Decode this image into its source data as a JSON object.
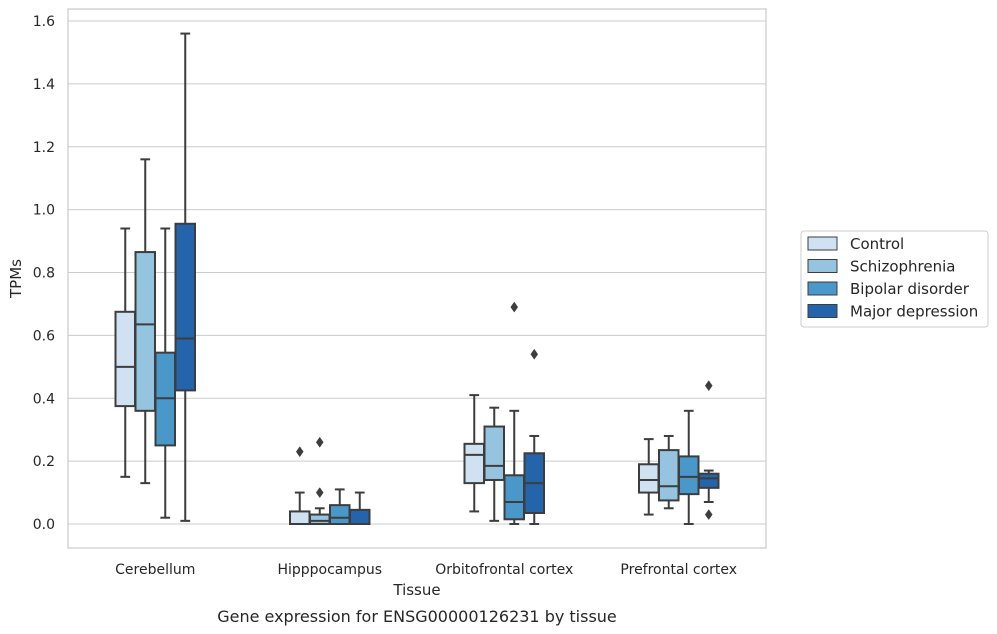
{
  "chart_data": {
    "type": "boxplot",
    "title": "",
    "caption": "Gene expression for ENSG00000126231 by tissue",
    "xlabel": "Tissue",
    "ylabel": "TPMs",
    "ylim": [
      -0.075,
      1.64
    ],
    "yticks": [
      "0.0",
      "0.2",
      "0.4",
      "0.6",
      "0.8",
      "1.0",
      "1.2",
      "1.4",
      "1.6"
    ],
    "grid": "horizontal",
    "legend_position": "right",
    "categories": [
      "Cerebellum",
      "Hipppocampus",
      "Orbitofrontal cortex",
      "Prefrontal cortex"
    ],
    "series": [
      {
        "name": "Control",
        "color": "#d0e1f2",
        "boxes": [
          {
            "whislo": 0.15,
            "q1": 0.375,
            "med": 0.5,
            "q3": 0.675,
            "whishi": 0.94,
            "fliers": []
          },
          {
            "whislo": 0.0,
            "q1": 0.0,
            "med": 0.0,
            "q3": 0.04,
            "whishi": 0.1,
            "fliers": [
              0.23
            ]
          },
          {
            "whislo": 0.04,
            "q1": 0.13,
            "med": 0.22,
            "q3": 0.255,
            "whishi": 0.41,
            "fliers": []
          },
          {
            "whislo": 0.03,
            "q1": 0.1,
            "med": 0.14,
            "q3": 0.19,
            "whishi": 0.27,
            "fliers": []
          }
        ]
      },
      {
        "name": "Schizophrenia",
        "color": "#94c4df",
        "boxes": [
          {
            "whislo": 0.13,
            "q1": 0.36,
            "med": 0.635,
            "q3": 0.865,
            "whishi": 1.16,
            "fliers": []
          },
          {
            "whislo": 0.0,
            "q1": 0.0,
            "med": 0.01,
            "q3": 0.03,
            "whishi": 0.05,
            "fliers": [
              0.1,
              0.26
            ]
          },
          {
            "whislo": 0.01,
            "q1": 0.14,
            "med": 0.185,
            "q3": 0.31,
            "whishi": 0.37,
            "fliers": []
          },
          {
            "whislo": 0.05,
            "q1": 0.075,
            "med": 0.12,
            "q3": 0.235,
            "whishi": 0.28,
            "fliers": []
          }
        ]
      },
      {
        "name": "Bipolar disorder",
        "color": "#4a98c9",
        "boxes": [
          {
            "whislo": 0.02,
            "q1": 0.25,
            "med": 0.4,
            "q3": 0.545,
            "whishi": 0.94,
            "fliers": []
          },
          {
            "whislo": 0.0,
            "q1": 0.0,
            "med": 0.02,
            "q3": 0.06,
            "whishi": 0.11,
            "fliers": []
          },
          {
            "whislo": 0.0,
            "q1": 0.015,
            "med": 0.07,
            "q3": 0.155,
            "whishi": 0.36,
            "fliers": [
              0.69
            ]
          },
          {
            "whislo": 0.0,
            "q1": 0.095,
            "med": 0.15,
            "q3": 0.215,
            "whishi": 0.36,
            "fliers": []
          }
        ]
      },
      {
        "name": "Major depression",
        "color": "#2364aa",
        "boxes": [
          {
            "whislo": 0.01,
            "q1": 0.425,
            "med": 0.59,
            "q3": 0.955,
            "whishi": 1.56,
            "fliers": []
          },
          {
            "whislo": 0.0,
            "q1": 0.0,
            "med": 0.0,
            "q3": 0.045,
            "whishi": 0.1,
            "fliers": []
          },
          {
            "whislo": 0.0,
            "q1": 0.035,
            "med": 0.13,
            "q3": 0.225,
            "whishi": 0.28,
            "fliers": [
              0.54
            ]
          },
          {
            "whislo": 0.07,
            "q1": 0.115,
            "med": 0.145,
            "q3": 0.16,
            "whishi": 0.17,
            "fliers": [
              0.44,
              0.03
            ]
          }
        ]
      }
    ],
    "colors": {
      "grid": "#cccccc",
      "frame": "#cccccc",
      "line": "#3d3d3d",
      "text": "#262626"
    }
  }
}
